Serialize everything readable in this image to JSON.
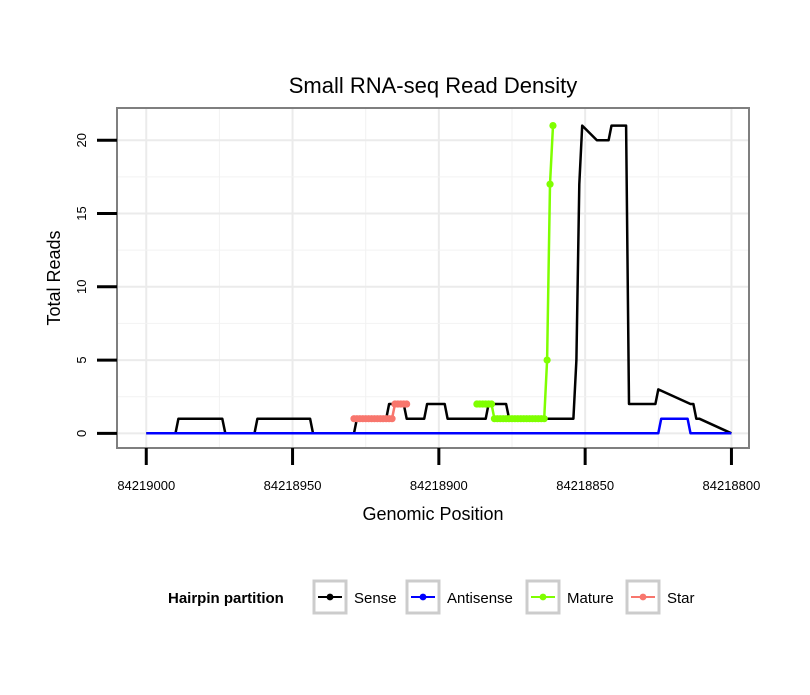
{
  "chart_data": {
    "type": "line",
    "title": "Small RNA-seq Read Density",
    "xlabel": "Genomic Position",
    "ylabel": "Total Reads",
    "x_reversed": true,
    "xlim": [
      84219010,
      84218794
    ],
    "ylim": [
      -1.0,
      22.2
    ],
    "x_ticks": [
      84219000,
      84218950,
      84218900,
      84218850,
      84218800
    ],
    "x_tick_labels": [
      "84219000",
      "84218950",
      "84218900",
      "84218850",
      "84218800"
    ],
    "y_ticks": [
      0,
      5,
      10,
      15,
      20
    ],
    "y_tick_labels": [
      "0",
      "5",
      "10",
      "15",
      "20"
    ],
    "grid": true,
    "legend": {
      "title": "Hairpin partition",
      "placement": "bottom",
      "entries": [
        "Sense",
        "Antisense",
        "Mature",
        "Star"
      ]
    },
    "series": [
      {
        "name": "Sense",
        "color": "#000000",
        "x": [
          84219000,
          84218990,
          84218989,
          84218976,
          84218975,
          84218974,
          84218973,
          84218963,
          84218962,
          84218944,
          84218943,
          84218929,
          84218928,
          84218918,
          84218917,
          84218912,
          84218911,
          84218905,
          84218904,
          84218898,
          84218897,
          84218884,
          84218883,
          84218877,
          84218876,
          84218854,
          84218853,
          84218852,
          84218851,
          84218846,
          84218845,
          84218842,
          84218841,
          84218839,
          84218838,
          84218836,
          84218835,
          84218832,
          84218831,
          84218826,
          84218825,
          84218814,
          84218813,
          84218812,
          84218811,
          84218800
        ],
        "values": [
          0,
          0,
          1,
          1,
          1,
          1,
          0,
          0,
          1,
          1,
          0,
          0,
          1,
          1,
          2,
          2,
          1,
          1,
          2,
          2,
          1,
          1,
          2,
          2,
          1,
          1,
          5,
          17,
          21,
          20,
          20,
          20,
          21,
          21,
          21,
          21,
          2,
          2,
          2,
          2,
          3,
          2,
          2,
          1,
          1,
          0
        ]
      },
      {
        "name": "Antisense",
        "color": "#0000ff",
        "x": [
          84219000,
          84218825,
          84218824,
          84218815,
          84218814,
          84218800
        ],
        "values": [
          0,
          0,
          1,
          1,
          0,
          0
        ]
      },
      {
        "name": "Mature",
        "color": "#7fff00",
        "x": [
          84218887,
          84218886,
          84218885,
          84218884,
          84218883,
          84218882,
          84218881,
          84218880,
          84218879,
          84218878,
          84218877,
          84218876,
          84218875,
          84218874,
          84218873,
          84218872,
          84218871,
          84218870,
          84218869,
          84218868,
          84218867,
          84218866,
          84218865,
          84218864,
          84218863,
          84218862,
          84218861
        ],
        "values": [
          2,
          2,
          2,
          2,
          2,
          2,
          1,
          1,
          1,
          1,
          1,
          1,
          1,
          1,
          1,
          1,
          1,
          1,
          1,
          1,
          1,
          1,
          1,
          1,
          5,
          17,
          21
        ]
      },
      {
        "name": "Star",
        "color": "#f8766d",
        "x": [
          84218929,
          84218928,
          84218927,
          84218926,
          84218925,
          84218924,
          84218923,
          84218922,
          84218921,
          84218920,
          84218919,
          84218918,
          84218917,
          84218916,
          84218915,
          84218914,
          84218913,
          84218912,
          84218911
        ],
        "values": [
          1,
          1,
          1,
          1,
          1,
          1,
          1,
          1,
          1,
          1,
          1,
          1,
          1,
          1,
          2,
          2,
          2,
          2,
          2
        ]
      }
    ]
  }
}
